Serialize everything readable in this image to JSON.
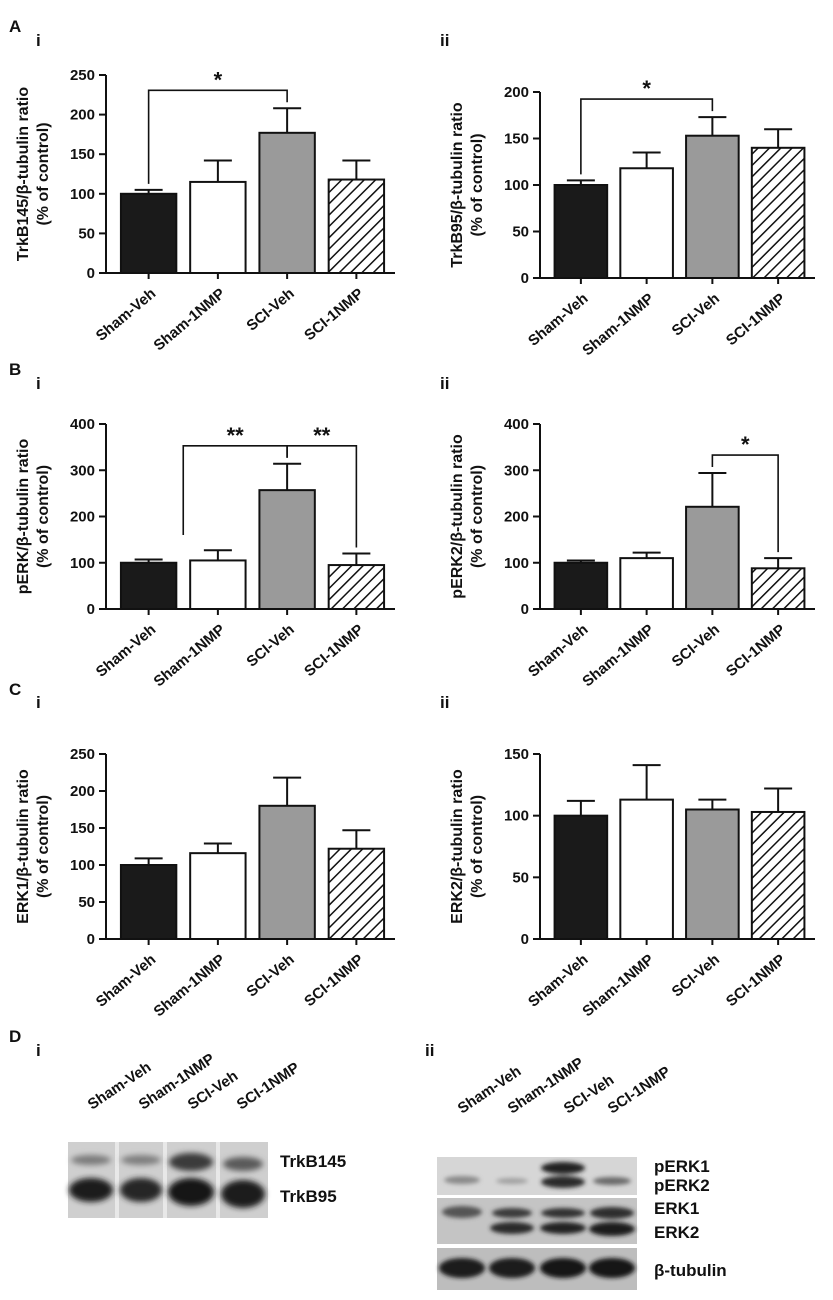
{
  "figure": {
    "panel_labels": {
      "A": "A",
      "B": "B",
      "C": "C",
      "D": "D",
      "i": "i",
      "ii": "ii"
    }
  },
  "colors": {
    "sham_veh": "#1a1a1a",
    "sham_1nmp": "#ffffff",
    "sci_veh": "#9a9a9a",
    "sci_1nmp": "hatched"
  },
  "chart_data": [
    {
      "id": "Ai",
      "type": "bar",
      "categories": [
        "Sham-Veh",
        "Sham-1NMP",
        "SCI-Veh",
        "SCI-1NMP"
      ],
      "values": [
        100,
        115,
        177,
        118
      ],
      "errors": [
        5,
        27,
        31,
        24
      ],
      "ylabel_line1": "TrkB145/β-tubulin ratio",
      "ylabel_line2": "(% of control)",
      "ylim": [
        0,
        250
      ],
      "yticks": [
        0,
        50,
        100,
        150,
        200,
        250
      ],
      "significance": [
        {
          "from": 0,
          "to": 2,
          "label": "*"
        }
      ]
    },
    {
      "id": "Aii",
      "type": "bar",
      "categories": [
        "Sham-Veh",
        "Sham-1NMP",
        "SCI-Veh",
        "SCI-1NMP"
      ],
      "values": [
        100,
        118,
        153,
        140
      ],
      "errors": [
        5,
        17,
        20,
        20
      ],
      "ylabel_line1": "TrkB95/β-tubulin ratio",
      "ylabel_line2": "(% of control)",
      "ylim": [
        0,
        200
      ],
      "yticks": [
        0,
        50,
        100,
        150,
        200
      ],
      "significance": [
        {
          "from": 0,
          "to": 2,
          "label": "*"
        }
      ]
    },
    {
      "id": "Bi",
      "type": "bar",
      "categories": [
        "Sham-Veh",
        "Sham-1NMP",
        "SCI-Veh",
        "SCI-1NMP"
      ],
      "values": [
        100,
        105,
        257,
        95
      ],
      "errors": [
        7,
        22,
        57,
        25
      ],
      "ylabel_line1": "pERK/β-tubulin ratio",
      "ylabel_line2": "(% of control)",
      "ylim": [
        0,
        400
      ],
      "yticks": [
        0,
        100,
        200,
        300,
        400
      ],
      "significance": [
        {
          "from": 0.5,
          "to": 2,
          "label": "**",
          "leftDrop": 160
        },
        {
          "from": 2,
          "to": 3,
          "label": "**"
        }
      ]
    },
    {
      "id": "Bii",
      "type": "bar",
      "categories": [
        "Sham-Veh",
        "Sham-1NMP",
        "SCI-Veh",
        "SCI-1NMP"
      ],
      "values": [
        100,
        110,
        221,
        88
      ],
      "errors": [
        5,
        12,
        73,
        22
      ],
      "ylabel_line1": "pERK2/β-tubulin ratio",
      "ylabel_line2": "(% of control)",
      "ylim": [
        0,
        400
      ],
      "yticks": [
        0,
        100,
        200,
        300,
        400
      ],
      "significance": [
        {
          "from": 2,
          "to": 3,
          "label": "*"
        }
      ]
    },
    {
      "id": "Ci",
      "type": "bar",
      "categories": [
        "Sham-Veh",
        "Sham-1NMP",
        "SCI-Veh",
        "SCI-1NMP"
      ],
      "values": [
        100,
        116,
        180,
        122
      ],
      "errors": [
        9,
        13,
        38,
        25
      ],
      "ylabel_line1": "ERK1/β-tubulin ratio",
      "ylabel_line2": "(% of control)",
      "ylim": [
        0,
        250
      ],
      "yticks": [
        0,
        50,
        100,
        150,
        200,
        250
      ],
      "significance": []
    },
    {
      "id": "Cii",
      "type": "bar",
      "categories": [
        "Sham-Veh",
        "Sham-1NMP",
        "SCI-Veh",
        "SCI-1NMP"
      ],
      "values": [
        100,
        113,
        105,
        103
      ],
      "errors": [
        12,
        28,
        8,
        19
      ],
      "ylabel_line1": "ERK2/β-tubulin ratio",
      "ylabel_line2": "(% of control)",
      "ylim": [
        0,
        150
      ],
      "yticks": [
        0,
        50,
        100,
        150
      ],
      "significance": []
    }
  ],
  "blots": {
    "Di": {
      "lanes": [
        "Sham-Veh",
        "Sham-1NMP",
        "SCI-Veh",
        "SCI-1NMP"
      ],
      "band_labels": [
        "TrkB145",
        "TrkB95"
      ]
    },
    "Dii": {
      "lanes": [
        "Sham-Veh",
        "Sham-1NMP",
        "SCI-Veh",
        "SCI-1NMP"
      ],
      "band_labels": [
        "pERK1",
        "pERK2",
        "ERK1",
        "ERK2",
        "β-tubulin"
      ]
    }
  }
}
